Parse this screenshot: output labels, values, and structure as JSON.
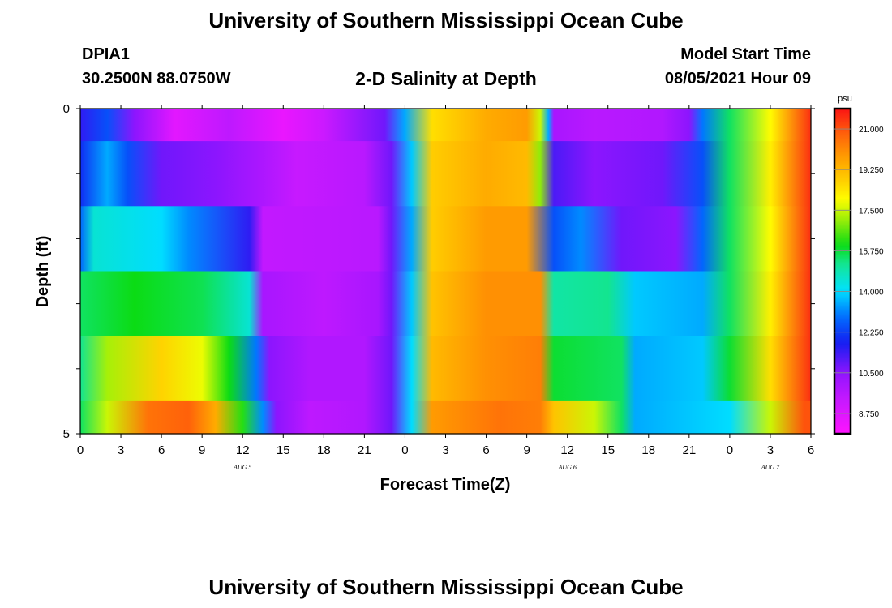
{
  "header": {
    "title": "University of Southern Mississippi Ocean Cube",
    "station": "DPIA1",
    "coords": "30.2500N  88.0750W",
    "subtitle": "2-D Salinity at Depth",
    "model_label": "Model Start Time",
    "model_time": "08/05/2021 Hour 09"
  },
  "footer": {
    "title": "University of Southern Mississippi Ocean Cube"
  },
  "chart_data": {
    "type": "heatmap",
    "title": "2-D Salinity at Depth",
    "xlabel": "Forecast Time(Z)",
    "ylabel": "Depth (ft)",
    "x_tick_labels": [
      "0",
      "3",
      "6",
      "9",
      "12",
      "15",
      "18",
      "21",
      "0",
      "3",
      "6",
      "9",
      "12",
      "15",
      "18",
      "21",
      "0",
      "3",
      "6"
    ],
    "x_range_hours": [
      0,
      54
    ],
    "date_labels": [
      {
        "label": "AUG  5",
        "hour": 12
      },
      {
        "label": "AUG  6",
        "hour": 36
      },
      {
        "label": "AUG  7",
        "hour": 51
      }
    ],
    "y_tick_labels": [
      "0",
      "5"
    ],
    "ylim": [
      0,
      5
    ],
    "y_minor_ticks": 4,
    "depth_layers": [
      0.0,
      0.5,
      1.5,
      2.5,
      3.5,
      4.5
    ],
    "layer_bounds": [
      0,
      0.5,
      1.5,
      2.5,
      3.5,
      4.5,
      5.0
    ],
    "colorbar": {
      "unit": "psu",
      "vmin": 7.875,
      "vmax": 21.875,
      "tick_values": [
        8.75,
        10.5,
        12.25,
        14.0,
        15.75,
        17.5,
        19.25,
        21.0
      ],
      "tick_labels": [
        "8.750",
        "10.500",
        "12.250",
        "14.000",
        "15.750",
        "17.500",
        "19.250",
        "21.000"
      ]
    },
    "profiles": [
      [
        [
          0,
          11.5
        ],
        [
          2,
          12.5
        ],
        [
          4,
          10.5
        ],
        [
          7,
          8.6
        ],
        [
          11,
          9.5
        ],
        [
          15,
          8.4
        ],
        [
          18,
          9.2
        ],
        [
          22.5,
          10.8
        ],
        [
          24,
          13.5
        ],
        [
          26,
          18.5
        ],
        [
          30,
          19.5
        ],
        [
          33,
          19.8
        ],
        [
          34,
          17.5
        ],
        [
          34.6,
          13.5
        ],
        [
          35,
          10.0
        ],
        [
          38,
          9.6
        ],
        [
          43,
          9.8
        ],
        [
          45,
          10.5
        ],
        [
          46,
          13.0
        ],
        [
          48,
          15.5
        ],
        [
          51,
          18.0
        ],
        [
          54,
          21.5
        ]
      ],
      [
        [
          0,
          12.0
        ],
        [
          2,
          13.5
        ],
        [
          3.5,
          12.5
        ],
        [
          6,
          10.8
        ],
        [
          10,
          10.5
        ],
        [
          13,
          10.0
        ],
        [
          16,
          9.3
        ],
        [
          21,
          9.6
        ],
        [
          23,
          10.8
        ],
        [
          24.5,
          13.8
        ],
        [
          26,
          18.8
        ],
        [
          30,
          19.5
        ],
        [
          33,
          19.2
        ],
        [
          34,
          17.0
        ],
        [
          35,
          11.2
        ],
        [
          38,
          10.5
        ],
        [
          43,
          10.8
        ],
        [
          46,
          12.5
        ],
        [
          48,
          15.5
        ],
        [
          51,
          18.2
        ],
        [
          54,
          21.5
        ]
      ],
      [
        [
          0,
          12.8
        ],
        [
          1,
          14.5
        ],
        [
          6,
          14.0
        ],
        [
          8,
          13.2
        ],
        [
          12.5,
          11.5
        ],
        [
          13.5,
          9.4
        ],
        [
          18,
          9.5
        ],
        [
          22,
          9.6
        ],
        [
          23,
          10.8
        ],
        [
          24.5,
          13.5
        ],
        [
          26,
          18.8
        ],
        [
          30,
          19.8
        ],
        [
          33,
          19.8
        ],
        [
          35,
          12.5
        ],
        [
          37,
          13.2
        ],
        [
          40,
          10.8
        ],
        [
          44,
          10.5
        ],
        [
          46,
          12.8
        ],
        [
          48,
          15.5
        ],
        [
          51,
          18.0
        ],
        [
          54,
          21.5
        ]
      ],
      [
        [
          0,
          15.5
        ],
        [
          4,
          16.0
        ],
        [
          9,
          15.6
        ],
        [
          12.5,
          14.5
        ],
        [
          13.5,
          10.0
        ],
        [
          18,
          9.5
        ],
        [
          22,
          10.0
        ],
        [
          23,
          10.8
        ],
        [
          24.5,
          13.8
        ],
        [
          26,
          19.0
        ],
        [
          30,
          20.0
        ],
        [
          34,
          20.0
        ],
        [
          35,
          15.0
        ],
        [
          39,
          15.2
        ],
        [
          41,
          13.8
        ],
        [
          46,
          13.5
        ],
        [
          48,
          15.5
        ],
        [
          51,
          18.2
        ],
        [
          54,
          21.5
        ]
      ],
      [
        [
          0,
          15.2
        ],
        [
          2,
          17.2
        ],
        [
          6,
          18.7
        ],
        [
          9,
          17.8
        ],
        [
          11,
          16.0
        ],
        [
          13,
          13.0
        ],
        [
          14,
          10.5
        ],
        [
          17,
          9.8
        ],
        [
          21,
          9.8
        ],
        [
          23,
          10.8
        ],
        [
          24.5,
          14.0
        ],
        [
          26,
          19.2
        ],
        [
          30,
          20.0
        ],
        [
          34,
          20.3
        ],
        [
          35,
          15.8
        ],
        [
          40,
          15.5
        ],
        [
          41,
          13.5
        ],
        [
          46,
          13.8
        ],
        [
          48,
          15.8
        ],
        [
          51,
          18.5
        ],
        [
          54,
          21.5
        ]
      ],
      [
        [
          0,
          15.5
        ],
        [
          2,
          17.5
        ],
        [
          5,
          20.5
        ],
        [
          8,
          20.8
        ],
        [
          10,
          19.5
        ],
        [
          12,
          16.2
        ],
        [
          13.5,
          13.2
        ],
        [
          14.5,
          10.5
        ],
        [
          17,
          9.5
        ],
        [
          21,
          9.8
        ],
        [
          23,
          10.8
        ],
        [
          24.5,
          14.0
        ],
        [
          26,
          19.8
        ],
        [
          31,
          20.5
        ],
        [
          34,
          20.3
        ],
        [
          35,
          19.0
        ],
        [
          38,
          17.5
        ],
        [
          40,
          15.5
        ],
        [
          41,
          13.5
        ],
        [
          48,
          14.0
        ],
        [
          51,
          17.5
        ],
        [
          53.5,
          21.0
        ]
      ]
    ]
  }
}
